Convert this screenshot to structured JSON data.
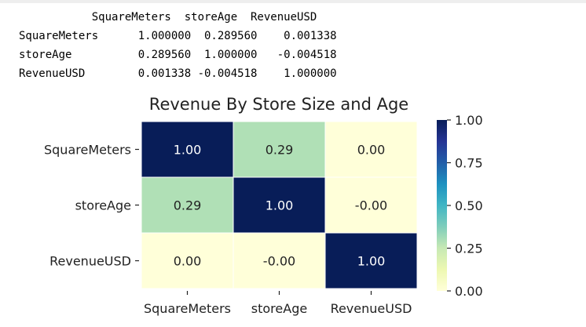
{
  "output_table": {
    "header": "           SquareMeters  storeAge  RevenueUSD",
    "rows": [
      "SquareMeters      1.000000  0.289560    0.001338",
      "storeAge          0.289560  1.000000   -0.004518",
      "RevenueUSD        0.001338 -0.004518    1.000000"
    ]
  },
  "chart_data": {
    "type": "heatmap",
    "title": "Revenue By Store Size and Age",
    "rows": [
      "SquareMeters",
      "storeAge",
      "RevenueUSD"
    ],
    "columns": [
      "SquareMeters",
      "storeAge",
      "RevenueUSD"
    ],
    "values": [
      [
        1.0,
        0.28956,
        0.001338
      ],
      [
        0.28956,
        1.0,
        -0.004518
      ],
      [
        0.001338,
        -0.004518,
        1.0
      ]
    ],
    "annotations": [
      [
        "1.00",
        "0.29",
        "0.00"
      ],
      [
        "0.29",
        "1.00",
        "-0.00"
      ],
      [
        "0.00",
        "-0.00",
        "1.00"
      ]
    ],
    "colormap": "YlGnBu",
    "colorbar": {
      "range": [
        0,
        1
      ],
      "ticks": [
        "0.00",
        "0.25",
        "0.50",
        "0.75",
        "1.00"
      ],
      "tick_values": [
        0,
        0.25,
        0.5,
        0.75,
        1.0
      ],
      "colors": [
        "#ffffd9",
        "#edf8b1",
        "#c7e9b4",
        "#7fcdbb",
        "#41b6c4",
        "#1d91c0",
        "#225ea8",
        "#253494",
        "#081d58"
      ]
    },
    "cell_border_color": "#ffffff",
    "grid": false
  }
}
